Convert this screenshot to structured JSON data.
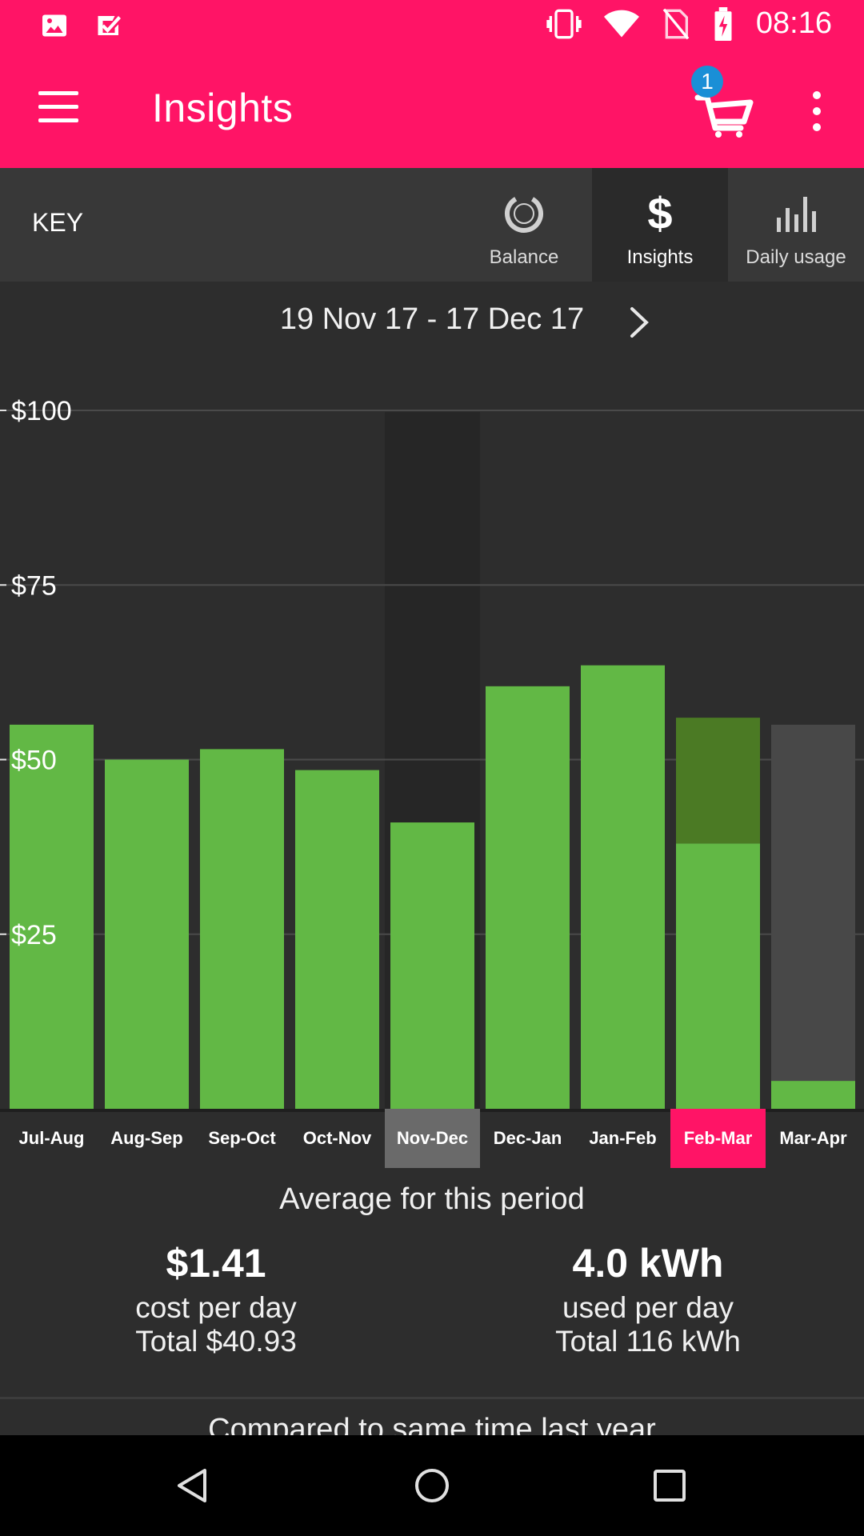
{
  "status_bar": {
    "time": "08:16",
    "icons": [
      "image-icon",
      "checkbox-check-icon",
      "vibrate-icon",
      "wifi-icon",
      "no-sim-icon",
      "battery-charging-icon"
    ]
  },
  "app_bar": {
    "title": "Insights",
    "cart_badge": "1",
    "accent_color": "#ff1466"
  },
  "tabs": {
    "key_label": "KEY",
    "items": [
      {
        "label": "Balance",
        "icon": "balance-ring-icon",
        "active": false
      },
      {
        "label": "Insights",
        "icon": "dollar-icon",
        "active": true
      },
      {
        "label": "Daily usage",
        "icon": "bar-chart-icon",
        "active": false
      }
    ]
  },
  "date_nav": {
    "range": "19 Nov 17 - 17 Dec 17",
    "next_icon": "chevron-right-icon"
  },
  "chart_data": {
    "type": "bar",
    "categories": [
      "Jul-Aug",
      "Aug-Sep",
      "Sep-Oct",
      "Oct-Nov",
      "Nov-Dec",
      "Dec-Jan",
      "Jan-Feb",
      "Feb-Mar",
      "Mar-Apr"
    ],
    "series": [
      {
        "values": [
          55,
          50,
          51.5,
          48.5,
          41,
          60.5,
          63.5,
          38,
          4
        ]
      },
      {
        "values": [
          0,
          0,
          0,
          0,
          0,
          0,
          0,
          18,
          0
        ]
      },
      {
        "values": [
          0,
          0,
          0,
          0,
          0,
          0,
          0,
          0,
          51
        ]
      }
    ],
    "series_colors": [
      "#62b845",
      "#4b7a24",
      "#484848"
    ],
    "y_ticks": [
      "$100",
      "$75",
      "$50",
      "$25"
    ],
    "y_tick_values": [
      100,
      75,
      50,
      25
    ],
    "ylim": [
      0,
      100
    ],
    "selected_category": "Nov-Dec",
    "highlighted_category": "Feb-Mar",
    "grid": true
  },
  "averages": {
    "title": "Average for this period",
    "cost": {
      "value": "$1.41",
      "label": "cost per day",
      "total": "Total $40.93"
    },
    "usage": {
      "value": "4.0 kWh",
      "label": "used per day",
      "total": "Total 116 kWh"
    },
    "compare_text": "Compared to same time last year"
  },
  "nav_bar": {
    "buttons": [
      "back-icon",
      "home-icon",
      "recents-icon"
    ]
  }
}
